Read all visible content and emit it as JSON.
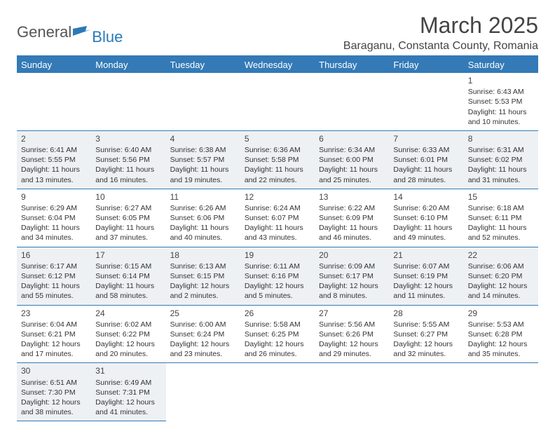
{
  "logo": {
    "general": "General",
    "blue": "Blue"
  },
  "title": "March 2025",
  "location": "Baraganu, Constanta County, Romania",
  "colors": {
    "header_bg": "#337ab7",
    "header_text": "#ffffff",
    "divider": "#337ab7",
    "shaded_bg": "#eef1f3",
    "text": "#333333",
    "logo_gray": "#555555",
    "logo_blue": "#2a7ab8"
  },
  "days": [
    "Sunday",
    "Monday",
    "Tuesday",
    "Wednesday",
    "Thursday",
    "Friday",
    "Saturday"
  ],
  "weeks": [
    [
      null,
      null,
      null,
      null,
      null,
      null,
      {
        "n": "1",
        "sr": "Sunrise: 6:43 AM",
        "ss": "Sunset: 5:53 PM",
        "d1": "Daylight: 11 hours",
        "d2": "and 10 minutes."
      }
    ],
    [
      {
        "n": "2",
        "sr": "Sunrise: 6:41 AM",
        "ss": "Sunset: 5:55 PM",
        "d1": "Daylight: 11 hours",
        "d2": "and 13 minutes."
      },
      {
        "n": "3",
        "sr": "Sunrise: 6:40 AM",
        "ss": "Sunset: 5:56 PM",
        "d1": "Daylight: 11 hours",
        "d2": "and 16 minutes."
      },
      {
        "n": "4",
        "sr": "Sunrise: 6:38 AM",
        "ss": "Sunset: 5:57 PM",
        "d1": "Daylight: 11 hours",
        "d2": "and 19 minutes."
      },
      {
        "n": "5",
        "sr": "Sunrise: 6:36 AM",
        "ss": "Sunset: 5:58 PM",
        "d1": "Daylight: 11 hours",
        "d2": "and 22 minutes."
      },
      {
        "n": "6",
        "sr": "Sunrise: 6:34 AM",
        "ss": "Sunset: 6:00 PM",
        "d1": "Daylight: 11 hours",
        "d2": "and 25 minutes."
      },
      {
        "n": "7",
        "sr": "Sunrise: 6:33 AM",
        "ss": "Sunset: 6:01 PM",
        "d1": "Daylight: 11 hours",
        "d2": "and 28 minutes."
      },
      {
        "n": "8",
        "sr": "Sunrise: 6:31 AM",
        "ss": "Sunset: 6:02 PM",
        "d1": "Daylight: 11 hours",
        "d2": "and 31 minutes."
      }
    ],
    [
      {
        "n": "9",
        "sr": "Sunrise: 6:29 AM",
        "ss": "Sunset: 6:04 PM",
        "d1": "Daylight: 11 hours",
        "d2": "and 34 minutes."
      },
      {
        "n": "10",
        "sr": "Sunrise: 6:27 AM",
        "ss": "Sunset: 6:05 PM",
        "d1": "Daylight: 11 hours",
        "d2": "and 37 minutes."
      },
      {
        "n": "11",
        "sr": "Sunrise: 6:26 AM",
        "ss": "Sunset: 6:06 PM",
        "d1": "Daylight: 11 hours",
        "d2": "and 40 minutes."
      },
      {
        "n": "12",
        "sr": "Sunrise: 6:24 AM",
        "ss": "Sunset: 6:07 PM",
        "d1": "Daylight: 11 hours",
        "d2": "and 43 minutes."
      },
      {
        "n": "13",
        "sr": "Sunrise: 6:22 AM",
        "ss": "Sunset: 6:09 PM",
        "d1": "Daylight: 11 hours",
        "d2": "and 46 minutes."
      },
      {
        "n": "14",
        "sr": "Sunrise: 6:20 AM",
        "ss": "Sunset: 6:10 PM",
        "d1": "Daylight: 11 hours",
        "d2": "and 49 minutes."
      },
      {
        "n": "15",
        "sr": "Sunrise: 6:18 AM",
        "ss": "Sunset: 6:11 PM",
        "d1": "Daylight: 11 hours",
        "d2": "and 52 minutes."
      }
    ],
    [
      {
        "n": "16",
        "sr": "Sunrise: 6:17 AM",
        "ss": "Sunset: 6:12 PM",
        "d1": "Daylight: 11 hours",
        "d2": "and 55 minutes."
      },
      {
        "n": "17",
        "sr": "Sunrise: 6:15 AM",
        "ss": "Sunset: 6:14 PM",
        "d1": "Daylight: 11 hours",
        "d2": "and 58 minutes."
      },
      {
        "n": "18",
        "sr": "Sunrise: 6:13 AM",
        "ss": "Sunset: 6:15 PM",
        "d1": "Daylight: 12 hours",
        "d2": "and 2 minutes."
      },
      {
        "n": "19",
        "sr": "Sunrise: 6:11 AM",
        "ss": "Sunset: 6:16 PM",
        "d1": "Daylight: 12 hours",
        "d2": "and 5 minutes."
      },
      {
        "n": "20",
        "sr": "Sunrise: 6:09 AM",
        "ss": "Sunset: 6:17 PM",
        "d1": "Daylight: 12 hours",
        "d2": "and 8 minutes."
      },
      {
        "n": "21",
        "sr": "Sunrise: 6:07 AM",
        "ss": "Sunset: 6:19 PM",
        "d1": "Daylight: 12 hours",
        "d2": "and 11 minutes."
      },
      {
        "n": "22",
        "sr": "Sunrise: 6:06 AM",
        "ss": "Sunset: 6:20 PM",
        "d1": "Daylight: 12 hours",
        "d2": "and 14 minutes."
      }
    ],
    [
      {
        "n": "23",
        "sr": "Sunrise: 6:04 AM",
        "ss": "Sunset: 6:21 PM",
        "d1": "Daylight: 12 hours",
        "d2": "and 17 minutes."
      },
      {
        "n": "24",
        "sr": "Sunrise: 6:02 AM",
        "ss": "Sunset: 6:22 PM",
        "d1": "Daylight: 12 hours",
        "d2": "and 20 minutes."
      },
      {
        "n": "25",
        "sr": "Sunrise: 6:00 AM",
        "ss": "Sunset: 6:24 PM",
        "d1": "Daylight: 12 hours",
        "d2": "and 23 minutes."
      },
      {
        "n": "26",
        "sr": "Sunrise: 5:58 AM",
        "ss": "Sunset: 6:25 PM",
        "d1": "Daylight: 12 hours",
        "d2": "and 26 minutes."
      },
      {
        "n": "27",
        "sr": "Sunrise: 5:56 AM",
        "ss": "Sunset: 6:26 PM",
        "d1": "Daylight: 12 hours",
        "d2": "and 29 minutes."
      },
      {
        "n": "28",
        "sr": "Sunrise: 5:55 AM",
        "ss": "Sunset: 6:27 PM",
        "d1": "Daylight: 12 hours",
        "d2": "and 32 minutes."
      },
      {
        "n": "29",
        "sr": "Sunrise: 5:53 AM",
        "ss": "Sunset: 6:28 PM",
        "d1": "Daylight: 12 hours",
        "d2": "and 35 minutes."
      }
    ],
    [
      {
        "n": "30",
        "sr": "Sunrise: 6:51 AM",
        "ss": "Sunset: 7:30 PM",
        "d1": "Daylight: 12 hours",
        "d2": "and 38 minutes."
      },
      {
        "n": "31",
        "sr": "Sunrise: 6:49 AM",
        "ss": "Sunset: 7:31 PM",
        "d1": "Daylight: 12 hours",
        "d2": "and 41 minutes."
      },
      null,
      null,
      null,
      null,
      null
    ]
  ]
}
